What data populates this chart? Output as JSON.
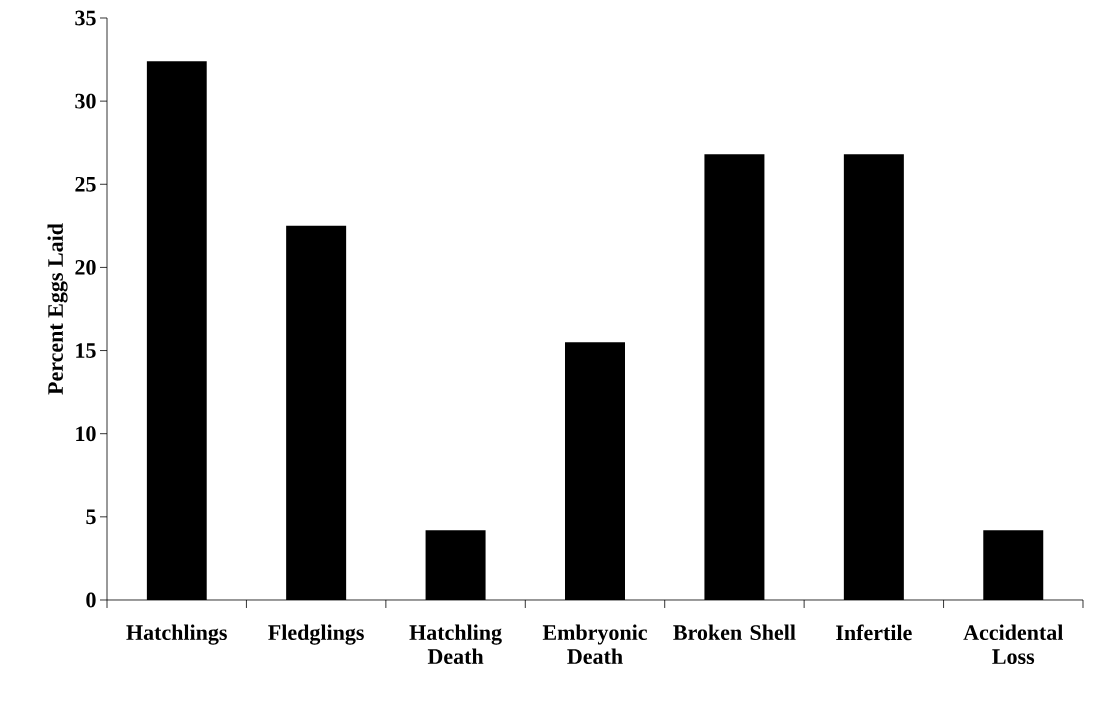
{
  "chart_data": {
    "type": "bar",
    "ylabel": "Percent Eggs Laid",
    "categories": [
      "Hatchlings",
      "Fledglings",
      "Hatchling Death",
      "Embryonic Death",
      "Broken Shell",
      "Infertile",
      "Accidental Loss"
    ],
    "values": [
      32.4,
      22.5,
      4.2,
      15.5,
      26.8,
      26.8,
      4.2
    ],
    "color": "#000000",
    "ylim": [
      0,
      35
    ],
    "yticks": [
      0,
      5,
      10,
      15,
      20,
      25,
      30,
      35
    ]
  }
}
